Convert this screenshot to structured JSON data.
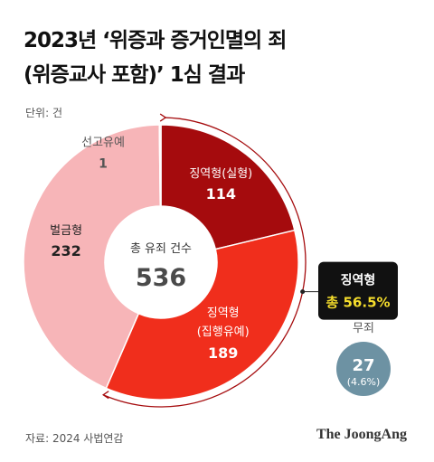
{
  "title": {
    "line1": "2023년 ‘위증과 증거인멸의 죄",
    "line2": "(위증교사 포함)’ 1심 결과"
  },
  "unit_label": "단위: 건",
  "source": "자료: 2024 사법연감",
  "brand": "The JoongAng",
  "colors": {
    "jail_real": "#a50b0d",
    "jail_suspended": "#f02e1c",
    "fine": "#f7b5b8",
    "declared": "#f9d9db",
    "acquittal": "#6d92a3",
    "callout_bg": "#111111",
    "callout_accent": "#f5dd2c"
  },
  "chart_data": {
    "type": "pie",
    "center_label": "총 유죄 건수",
    "center_value": "536",
    "slices": [
      {
        "label": "징역형(실형)",
        "value": 114,
        "value_text": "114"
      },
      {
        "label": "징역형",
        "sublabel": "(집행유예)",
        "value": 189,
        "value_text": "189"
      },
      {
        "label": "벌금형",
        "value": 232,
        "value_text": "232"
      },
      {
        "label": "선고유예",
        "value": 1,
        "value_text": "1"
      }
    ],
    "callout": {
      "label": "징역형",
      "value_text": "총 56.5%"
    },
    "acquittal": {
      "label": "무죄",
      "value": 27,
      "value_text": "27",
      "pct_text": "(4.6%)"
    }
  }
}
